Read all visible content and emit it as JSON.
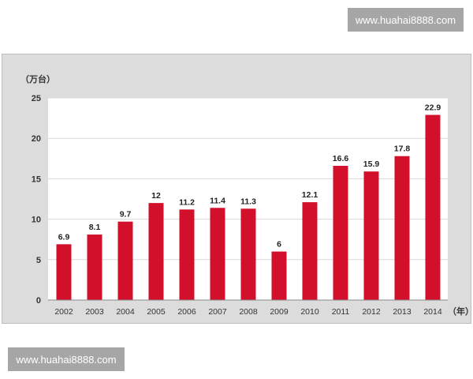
{
  "watermarks": [
    "www.huahai8888.com",
    "www.huahai8888.com"
  ],
  "chart_data": {
    "type": "bar",
    "title": "",
    "ylabel": "（万台）",
    "xlabel": "（年）",
    "categories": [
      "2002",
      "2003",
      "2004",
      "2005",
      "2006",
      "2007",
      "2008",
      "2009",
      "2010",
      "2011",
      "2012",
      "2013",
      "2014"
    ],
    "values": [
      6.9,
      8.1,
      9.7,
      12,
      11.2,
      11.4,
      11.3,
      6,
      12.1,
      16.6,
      15.9,
      17.8,
      22.9
    ],
    "data_labels": [
      "6.9",
      "8.1",
      "9.7",
      "12",
      "11.2",
      "11.4",
      "11.3",
      "6",
      "12.1",
      "16.6",
      "15.9",
      "17.8",
      "22.9"
    ],
    "yticks": [
      0,
      5,
      10,
      15,
      20,
      25
    ],
    "ylim": [
      0,
      25
    ],
    "grid": true,
    "bar_color": "#d2102b"
  }
}
